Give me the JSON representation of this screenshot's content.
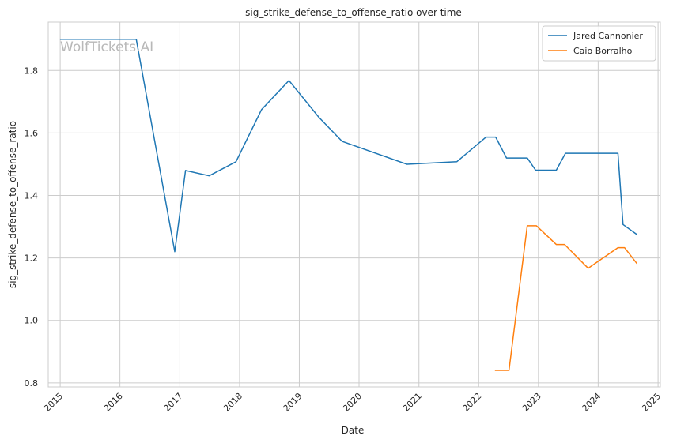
{
  "watermark": "WolfTickets.AI",
  "chart_data": {
    "type": "line",
    "title": "sig_strike_defense_to_offense_ratio over time",
    "xlabel": "Date",
    "ylabel": "sig_strike_defense_to_offense_ratio",
    "x_ticks": [
      "2015",
      "2016",
      "2017",
      "2018",
      "2019",
      "2020",
      "2021",
      "2022",
      "2023",
      "2024",
      "2025"
    ],
    "y_ticks": [
      "0.8",
      "1.0",
      "1.2",
      "1.4",
      "1.6",
      "1.8"
    ],
    "xlim": [
      "2014-10-20",
      "2025-01-15"
    ],
    "ylim": [
      0.787,
      1.955
    ],
    "grid": true,
    "legend_position": "top-right",
    "series": [
      {
        "name": "Jared Cannonier",
        "color": "#1f77b4",
        "points": [
          [
            "2014-12-31",
            1.9
          ],
          [
            "2015-06-01",
            1.9
          ],
          [
            "2016-01-01",
            1.9
          ],
          [
            "2016-04-10",
            1.9
          ],
          [
            "2016-12-01",
            1.22
          ],
          [
            "2017-02-05",
            1.48
          ],
          [
            "2017-06-30",
            1.463
          ],
          [
            "2017-12-10",
            1.508
          ],
          [
            "2018-05-15",
            1.675
          ],
          [
            "2018-10-30",
            1.768
          ],
          [
            "2019-05-01",
            1.65
          ],
          [
            "2019-09-20",
            1.573
          ],
          [
            "2020-10-20",
            1.5
          ],
          [
            "2021-08-20",
            1.508
          ],
          [
            "2022-02-15",
            1.587
          ],
          [
            "2022-04-15",
            1.587
          ],
          [
            "2022-06-20",
            1.52
          ],
          [
            "2022-10-25",
            1.52
          ],
          [
            "2022-12-15",
            1.481
          ],
          [
            "2023-04-20",
            1.481
          ],
          [
            "2023-06-15",
            1.535
          ],
          [
            "2024-03-15",
            1.535
          ],
          [
            "2024-05-01",
            1.535
          ],
          [
            "2024-06-01",
            1.307
          ],
          [
            "2024-08-25",
            1.275
          ]
        ]
      },
      {
        "name": "Caio Borralho",
        "color": "#ff7f0e",
        "points": [
          [
            "2022-04-10",
            0.84
          ],
          [
            "2022-07-05",
            0.84
          ],
          [
            "2022-10-25",
            1.303
          ],
          [
            "2022-12-20",
            1.303
          ],
          [
            "2023-04-20",
            1.243
          ],
          [
            "2023-06-10",
            1.243
          ],
          [
            "2023-11-01",
            1.167
          ],
          [
            "2024-05-01",
            1.233
          ],
          [
            "2024-06-10",
            1.233
          ],
          [
            "2024-08-25",
            1.182
          ]
        ]
      }
    ]
  }
}
